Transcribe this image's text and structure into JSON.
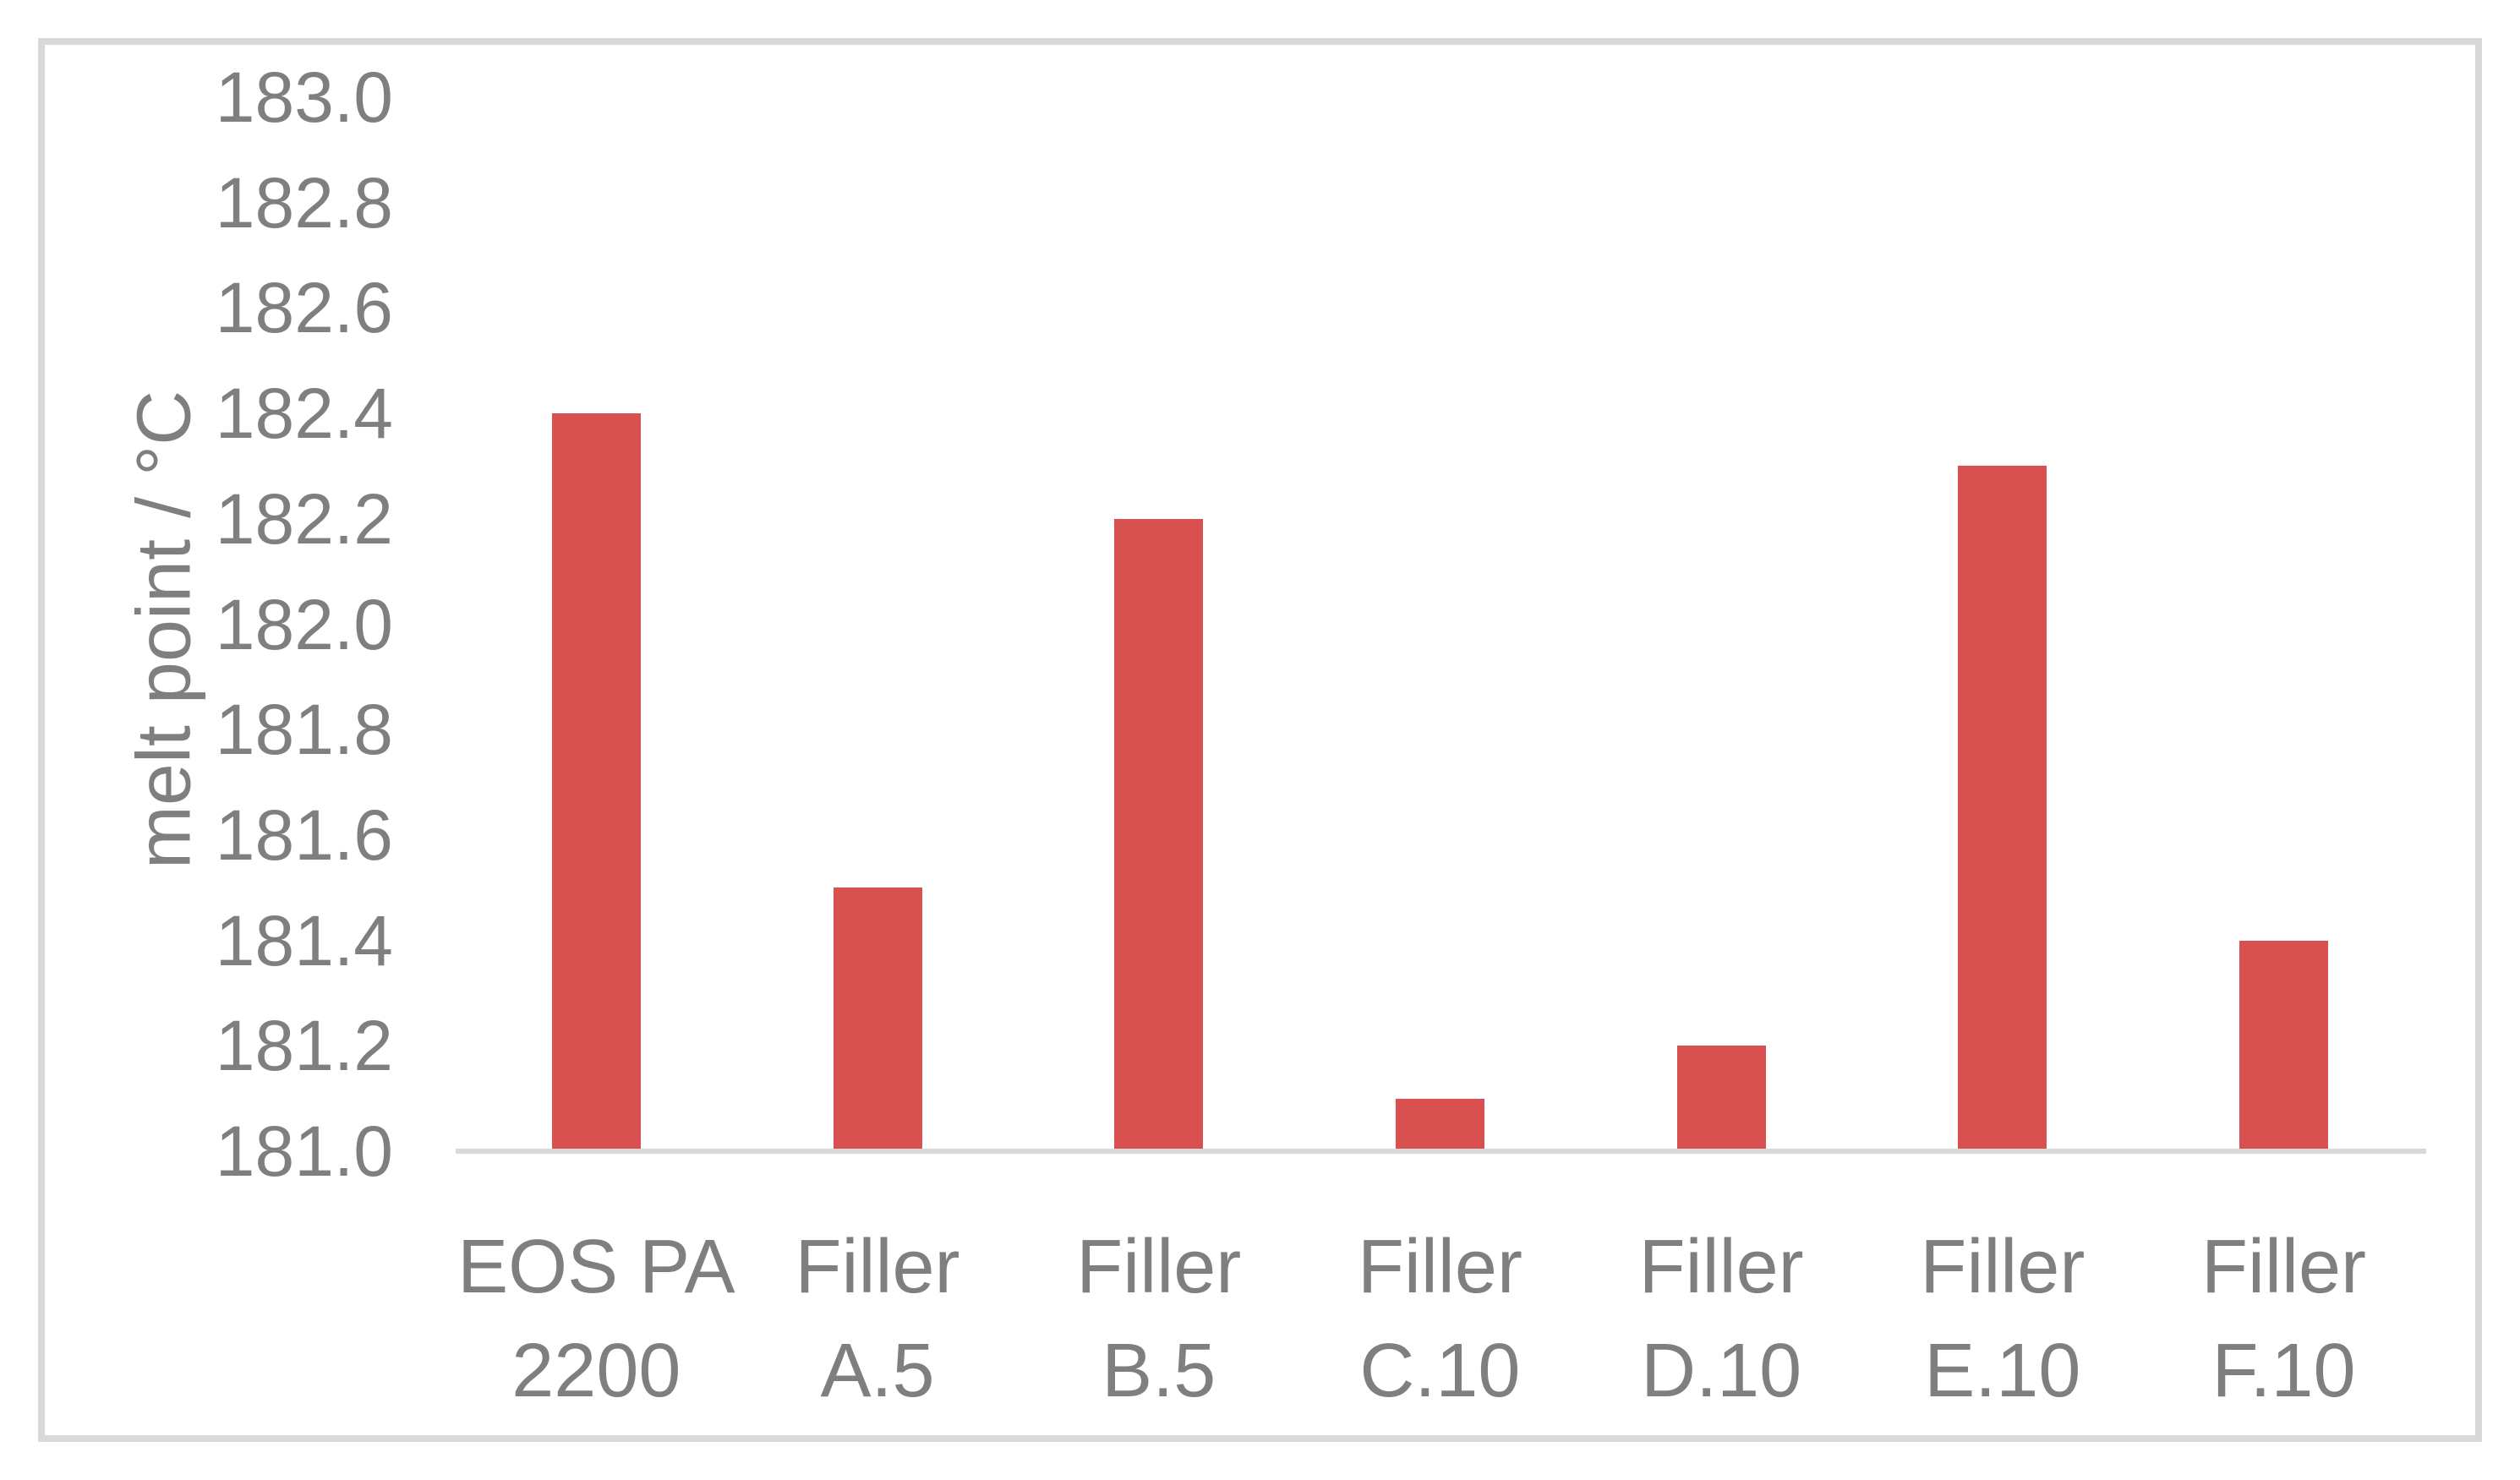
{
  "chart_data": {
    "type": "bar",
    "title": "",
    "xlabel": "",
    "ylabel": "melt point / °C",
    "categories": [
      "EOS PA\n2200",
      "Filler\nA.5",
      "Filler\nB.5",
      "Filler\nC.10",
      "Filler\nD.10",
      "Filler\nE.10",
      "Filler\nF.10"
    ],
    "values": [
      182.4,
      181.5,
      182.2,
      181.1,
      181.2,
      182.3,
      181.4
    ],
    "ylim": [
      181.0,
      183.0
    ],
    "ytick_step": 0.2,
    "yticks": [
      "183.0",
      "182.8",
      "182.6",
      "182.4",
      "182.2",
      "182.0",
      "181.8",
      "181.6",
      "181.4",
      "181.2",
      "181.0"
    ],
    "grid": false,
    "legend": false,
    "colors": {
      "bar": "#d95050",
      "axis_text": "#7f7f7f",
      "axis_line": "#d9d9d9",
      "frame_border": "#d9d9d9",
      "plot_background": "#ffffff"
    }
  }
}
